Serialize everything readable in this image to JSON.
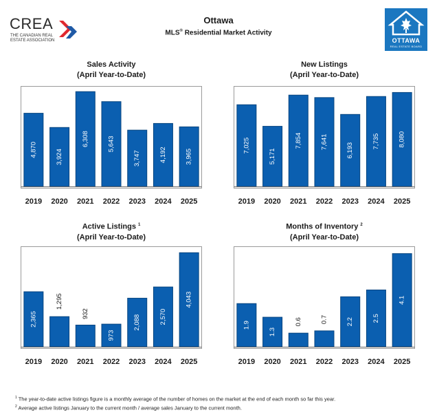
{
  "header": {
    "title": "Ottawa",
    "subtitle_main": "MLS",
    "subtitle_reg": "®",
    "subtitle_rest": " Residential Market Activity"
  },
  "logos": {
    "crea_word": "CREA",
    "crea_sub": "THE CANADIAN REAL ESTATE ASSOCIATION",
    "board_name": "OTTAWA",
    "board_sub": "REAL ESTATE BOARD"
  },
  "colors": {
    "bar": "#0b5fb0",
    "bar_edge": "#08457f",
    "frame": "#9a9a9a",
    "text": "#1a1a1a",
    "crea_red": "#e0282f",
    "crea_blue": "#1f5aa6"
  },
  "chart_data": [
    {
      "type": "bar",
      "title": "Sales Activity",
      "subtitle": "(April Year-to-Date)",
      "footnote_ref": "",
      "categories": [
        "2019",
        "2020",
        "2021",
        "2022",
        "2023",
        "2024",
        "2025"
      ],
      "values": [
        4870,
        3924,
        6308,
        5643,
        3747,
        4192,
        3965
      ],
      "labels": [
        "4,870",
        "3,924",
        "6,308",
        "5,643",
        "3,747",
        "4,192",
        "3,965"
      ],
      "ylim": [
        0,
        6500
      ],
      "xlabel": "",
      "ylabel": "",
      "grid": false
    },
    {
      "type": "bar",
      "title": "New Listings",
      "subtitle": "(April Year-to-Date)",
      "footnote_ref": "",
      "categories": [
        "2019",
        "2020",
        "2021",
        "2022",
        "2023",
        "2024",
        "2025"
      ],
      "values": [
        7025,
        5171,
        7854,
        7641,
        6193,
        7735,
        8080
      ],
      "labels": [
        "7,025",
        "5,171",
        "7,854",
        "7,641",
        "6,193",
        "7,735",
        "8,080"
      ],
      "ylim": [
        0,
        8400
      ],
      "xlabel": "",
      "ylabel": "",
      "grid": false
    },
    {
      "type": "bar",
      "title": "Active Listings",
      "subtitle": "(April Year-to-Date)",
      "footnote_ref": "1",
      "categories": [
        "2019",
        "2020",
        "2021",
        "2022",
        "2023",
        "2024",
        "2025"
      ],
      "values": [
        2365,
        1295,
        932,
        973,
        2088,
        2570,
        4043
      ],
      "labels": [
        "2,365",
        "1,295",
        "932",
        "973",
        "2,088",
        "2,570",
        "4,043"
      ],
      "ylim": [
        0,
        4200
      ],
      "xlabel": "",
      "ylabel": "",
      "grid": false
    },
    {
      "type": "bar",
      "title": "Months of Inventory",
      "subtitle": "(April Year-to-Date)",
      "footnote_ref": "2",
      "categories": [
        "2019",
        "2020",
        "2021",
        "2022",
        "2023",
        "2024",
        "2025"
      ],
      "values": [
        1.9,
        1.3,
        0.6,
        0.7,
        2.2,
        2.5,
        4.1
      ],
      "labels": [
        "1.9",
        "1.3",
        "0.6",
        "0.7",
        "2.2",
        "2.5",
        "4.1"
      ],
      "ylim": [
        0,
        4.3
      ],
      "xlabel": "",
      "ylabel": "",
      "grid": false
    }
  ],
  "footnotes": [
    {
      "mark": "1",
      "text": " The year-to-date active listings figure is a monthly average of the number of homes on the market at the end of each month so far this year."
    },
    {
      "mark": "2",
      "text": " Average active listings January to the current month / average sales January to the current month."
    }
  ]
}
